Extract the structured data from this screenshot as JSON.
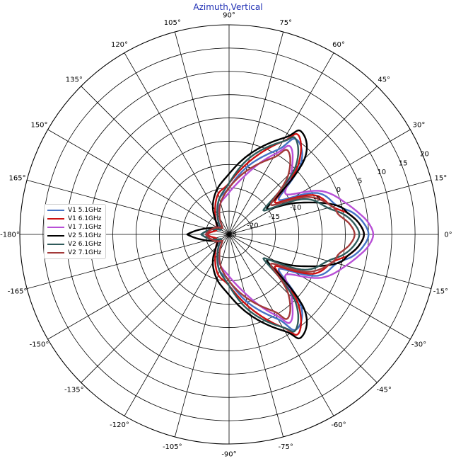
{
  "chart_data": {
    "type": "polar-line",
    "title": "Azimuth,Vertical",
    "angle_unit": "degrees",
    "angle_tick_labels": [
      "0°",
      "15°",
      "30°",
      "45°",
      "60°",
      "75°",
      "90°",
      "105°",
      "120°",
      "135°",
      "150°",
      "165°",
      "-180°",
      "-165°",
      "-150°",
      "-135°",
      "-120°",
      "-105°",
      "-90°",
      "-75°",
      "-60°",
      "-45°",
      "-30°",
      "-15°"
    ],
    "angle_tick_values": [
      0,
      15,
      30,
      45,
      60,
      75,
      90,
      105,
      120,
      135,
      150,
      165,
      180,
      195,
      210,
      225,
      240,
      255,
      270,
      285,
      300,
      315,
      330,
      345
    ],
    "radial_tick_labels": [
      "20",
      "15",
      "10",
      "5",
      "0",
      "-5",
      "-10",
      "-15",
      "-20",
      "-25"
    ],
    "radial_range": [
      -25,
      20
    ],
    "radial_label_angle": 22.5,
    "grid": true,
    "legend_position": "left",
    "x": [
      -180,
      -165,
      -150,
      -135,
      -120,
      -105,
      -90,
      -75,
      -60,
      -55,
      -45,
      -35,
      -25,
      -15,
      -10,
      -5,
      0,
      5,
      10,
      15,
      25,
      35,
      45,
      55,
      60,
      75,
      90,
      105,
      120,
      135,
      150,
      165,
      180
    ],
    "series": [
      {
        "name": "V1 5.1GHz",
        "color": "#4472c4",
        "values": [
          -19,
          -21,
          -23,
          -22,
          -20,
          -17,
          -15,
          -10,
          -4,
          0,
          -3,
          -12,
          -4,
          -1,
          2,
          4,
          5,
          4,
          2,
          -1,
          -4,
          -12,
          -3,
          0,
          -4,
          -10,
          -15,
          -17,
          -20,
          -22,
          -23,
          -21,
          -19
        ]
      },
      {
        "name": "V1 6.1GHz",
        "color": "#cc1111",
        "values": [
          -20,
          -22,
          -22,
          -21,
          -19,
          -16,
          -14,
          -9,
          -2,
          1,
          -4,
          -13,
          -5,
          -2,
          1,
          3,
          4,
          3,
          1,
          -2,
          -5,
          -13,
          -4,
          1,
          -2,
          -9,
          -14,
          -16,
          -19,
          -21,
          -22,
          -22,
          -20
        ]
      },
      {
        "name": "V1 7.1GHz",
        "color": "#b84fd6",
        "values": [
          -20,
          -21,
          -22,
          -22,
          -20,
          -18,
          -16,
          -12,
          -5,
          -2,
          -6,
          -10,
          -3,
          1,
          3,
          5,
          6,
          5,
          3,
          1,
          -3,
          -10,
          -6,
          -2,
          -5,
          -12,
          -16,
          -18,
          -20,
          -22,
          -22,
          -21,
          -20
        ]
      },
      {
        "name": "V2 5.1GHz",
        "color": "#000000",
        "values": [
          -16,
          -20,
          -22,
          -21,
          -18,
          -15,
          -12,
          -7,
          -1,
          2,
          -2,
          -15,
          -9,
          -1,
          1,
          3,
          4,
          3,
          1,
          -1,
          -9,
          -15,
          -2,
          2,
          -1,
          -7,
          -12,
          -15,
          -18,
          -21,
          -22,
          -20,
          -16
        ]
      },
      {
        "name": "V2 6.1GHz",
        "color": "#2f5b5b",
        "values": [
          -19,
          -21,
          -23,
          -22,
          -20,
          -17,
          -14,
          -8,
          -2,
          0,
          -5,
          -16,
          -7,
          -3,
          0,
          2,
          3,
          2,
          0,
          -3,
          -7,
          -16,
          -5,
          0,
          -2,
          -8,
          -14,
          -17,
          -20,
          -22,
          -23,
          -21,
          -19
        ]
      },
      {
        "name": "V2 7.1GHz",
        "color": "#a33a3a",
        "values": [
          -20,
          -21,
          -22,
          -23,
          -21,
          -18,
          -15,
          -11,
          -6,
          -3,
          -7,
          -14,
          -6,
          -2,
          -1,
          1,
          2,
          1,
          -1,
          -2,
          -6,
          -14,
          -7,
          -3,
          -6,
          -11,
          -15,
          -18,
          -21,
          -23,
          -22,
          -21,
          -20
        ]
      }
    ]
  }
}
